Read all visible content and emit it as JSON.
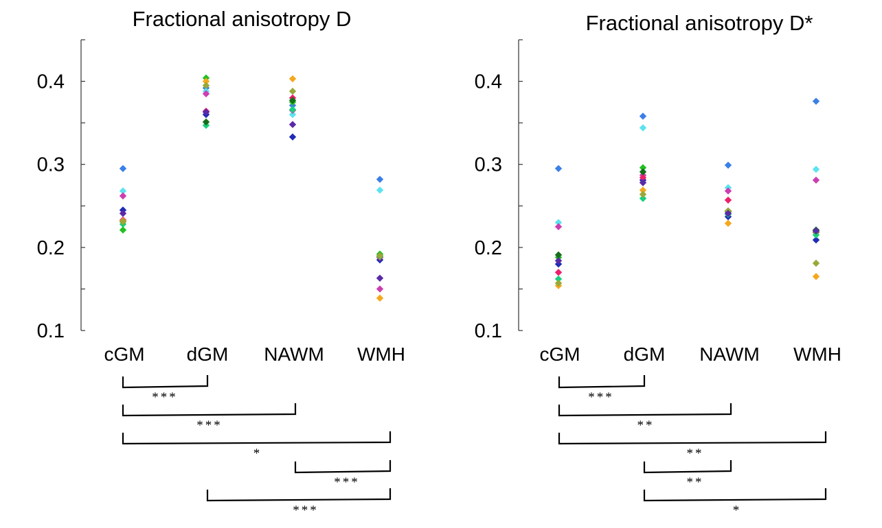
{
  "chart_data": [
    {
      "type": "scatter",
      "title": "Fractional anisotropy D",
      "categories": [
        "cGM",
        "dGM",
        "NAWM",
        "WMH"
      ],
      "yticks": [
        "0.1",
        "0.2",
        "0.3",
        "0.4"
      ],
      "ylim": [
        0.1,
        0.45
      ],
      "series": [
        {
          "name": "s1",
          "color": "#3b7fe8",
          "values": [
            0.295,
            0.392,
            0.371,
            0.282
          ]
        },
        {
          "name": "s2",
          "color": "#5be3f0",
          "values": [
            0.268,
            0.388,
            0.36,
            0.269
          ]
        },
        {
          "name": "s3",
          "color": "#cc3fb0",
          "values": [
            0.262,
            0.385,
            0.365,
            0.15
          ]
        },
        {
          "name": "s4",
          "color": "#1f2bb5",
          "values": [
            0.245,
            0.36,
            0.333,
            0.185
          ]
        },
        {
          "name": "s5",
          "color": "#ee1f6b",
          "values": [
            0.233,
            0.364,
            0.38,
            0.188
          ]
        },
        {
          "name": "s6",
          "color": "#19d07e",
          "values": [
            0.228,
            0.347,
            0.366,
            0.189
          ]
        },
        {
          "name": "s7",
          "color": "#22c022",
          "values": [
            0.221,
            0.404,
            0.375,
            0.192
          ]
        },
        {
          "name": "s8",
          "color": "#f5a81d",
          "values": [
            0.232,
            0.4,
            0.403,
            0.139
          ]
        },
        {
          "name": "s9",
          "color": "#156e1a",
          "values": [
            0.231,
            0.351,
            0.377,
            0.19
          ]
        },
        {
          "name": "s10",
          "color": "#9aa83a",
          "values": [
            0.231,
            0.395,
            0.388,
            0.19
          ]
        },
        {
          "name": "s11",
          "color": "#5a2aa8",
          "values": [
            0.241,
            0.363,
            0.348,
            0.163
          ]
        }
      ],
      "significance": [
        {
          "from": 0,
          "to": 1,
          "label": "***"
        },
        {
          "from": 0,
          "to": 2,
          "label": "***"
        },
        {
          "from": 0,
          "to": 3,
          "label": "*"
        },
        {
          "from": 2,
          "to": 3,
          "label": "***"
        },
        {
          "from": 1,
          "to": 3,
          "label": "***"
        }
      ]
    },
    {
      "type": "scatter",
      "title": "Fractional anisotropy D*",
      "categories": [
        "cGM",
        "dGM",
        "NAWM",
        "WMH"
      ],
      "yticks": [
        "0.1",
        "0.2",
        "0.3",
        "0.4"
      ],
      "ylim": [
        0.1,
        0.45
      ],
      "series": [
        {
          "name": "s1",
          "color": "#3b7fe8",
          "values": [
            0.295,
            0.358,
            0.299,
            0.376
          ]
        },
        {
          "name": "s2",
          "color": "#5be3f0",
          "values": [
            0.23,
            0.344,
            0.272,
            0.294
          ]
        },
        {
          "name": "s3",
          "color": "#cc3fb0",
          "values": [
            0.225,
            0.287,
            0.268,
            0.281
          ]
        },
        {
          "name": "s4",
          "color": "#1f2bb5",
          "values": [
            0.18,
            0.281,
            0.237,
            0.209
          ]
        },
        {
          "name": "s5",
          "color": "#ee1f6b",
          "values": [
            0.17,
            0.284,
            0.257,
            0.218
          ]
        },
        {
          "name": "s6",
          "color": "#19d07e",
          "values": [
            0.162,
            0.259,
            0.24,
            0.215
          ]
        },
        {
          "name": "s7",
          "color": "#22c022",
          "values": [
            0.188,
            0.296,
            0.244,
            0.219
          ]
        },
        {
          "name": "s8",
          "color": "#f5a81d",
          "values": [
            0.154,
            0.269,
            0.229,
            0.165
          ]
        },
        {
          "name": "s9",
          "color": "#156e1a",
          "values": [
            0.191,
            0.291,
            0.243,
            0.221
          ]
        },
        {
          "name": "s10",
          "color": "#9aa83a",
          "values": [
            0.157,
            0.264,
            0.244,
            0.181
          ]
        },
        {
          "name": "s11",
          "color": "#5a2aa8",
          "values": [
            0.184,
            0.278,
            0.241,
            0.22
          ]
        }
      ],
      "significance": [
        {
          "from": 0,
          "to": 1,
          "label": "***"
        },
        {
          "from": 0,
          "to": 2,
          "label": "**"
        },
        {
          "from": 0,
          "to": 3,
          "label": "**"
        },
        {
          "from": 1,
          "to": 2,
          "label": "**"
        },
        {
          "from": 1,
          "to": 3,
          "label": "*"
        }
      ]
    }
  ]
}
